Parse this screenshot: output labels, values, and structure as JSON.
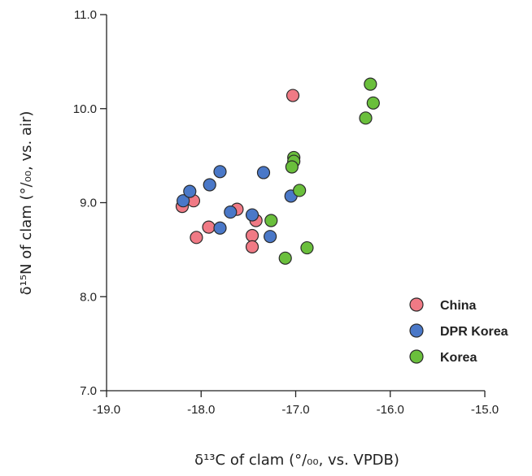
{
  "chart_data": {
    "type": "scatter",
    "xlabel": "δ¹³C of clam (°/₀₀, vs. VPDB)",
    "ylabel": "δ¹⁵N of clam (°/₀₀, vs. air)",
    "xlim": [
      -19.0,
      -15.0
    ],
    "ylim": [
      7.0,
      11.0
    ],
    "x_ticks": [
      "-19.0",
      "-18.0",
      "-17.0",
      "-16.0",
      "-15.0"
    ],
    "y_ticks": [
      "7.0",
      "8.0",
      "9.0",
      "10.0",
      "11.0"
    ],
    "grid": false,
    "legend_position": "bottom-right",
    "series": [
      {
        "name": "China",
        "color": "#f07a85",
        "points": [
          {
            "x": -18.2,
            "y": 8.96
          },
          {
            "x": -18.08,
            "y": 9.02
          },
          {
            "x": -18.05,
            "y": 8.63
          },
          {
            "x": -17.92,
            "y": 8.74
          },
          {
            "x": -17.62,
            "y": 8.93
          },
          {
            "x": -17.42,
            "y": 8.81
          },
          {
            "x": -17.46,
            "y": 8.65
          },
          {
            "x": -17.46,
            "y": 8.53
          },
          {
            "x": -17.03,
            "y": 10.14
          }
        ]
      },
      {
        "name": "DPR Korea",
        "color": "#4a78c8",
        "points": [
          {
            "x": -18.19,
            "y": 9.02
          },
          {
            "x": -18.12,
            "y": 9.12
          },
          {
            "x": -17.91,
            "y": 9.19
          },
          {
            "x": -17.8,
            "y": 9.33
          },
          {
            "x": -17.69,
            "y": 8.9
          },
          {
            "x": -17.8,
            "y": 8.73
          },
          {
            "x": -17.46,
            "y": 8.87
          },
          {
            "x": -17.34,
            "y": 9.32
          },
          {
            "x": -17.27,
            "y": 8.64
          },
          {
            "x": -17.05,
            "y": 9.07
          }
        ]
      },
      {
        "name": "Korea",
        "color": "#6abf3c",
        "points": [
          {
            "x": -17.26,
            "y": 8.81
          },
          {
            "x": -17.11,
            "y": 8.41
          },
          {
            "x": -17.02,
            "y": 9.48
          },
          {
            "x": -17.02,
            "y": 9.44
          },
          {
            "x": -17.04,
            "y": 9.38
          },
          {
            "x": -16.96,
            "y": 9.13
          },
          {
            "x": -16.88,
            "y": 8.52
          },
          {
            "x": -16.26,
            "y": 9.9
          },
          {
            "x": -16.21,
            "y": 10.26
          },
          {
            "x": -16.18,
            "y": 10.06
          }
        ]
      }
    ]
  }
}
